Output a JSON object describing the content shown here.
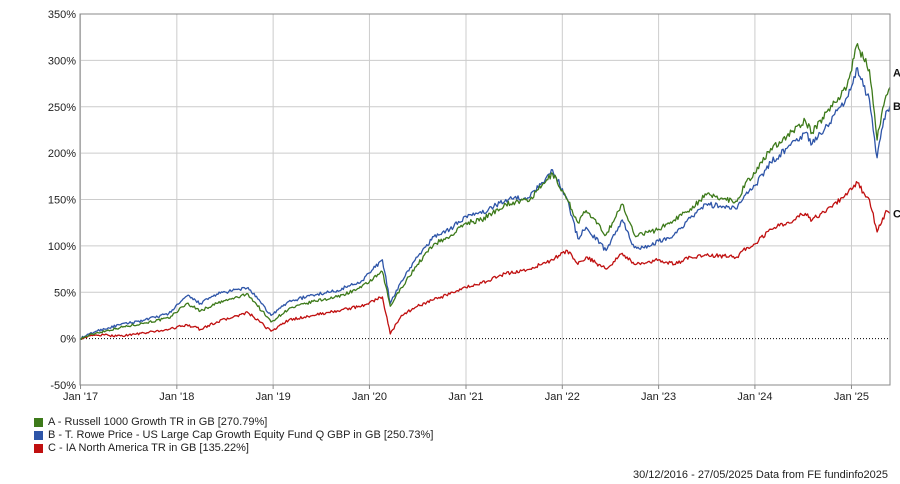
{
  "chart_data": {
    "type": "line",
    "ylim": [
      -50,
      350
    ],
    "y_ticks": [
      -50,
      0,
      50,
      100,
      150,
      200,
      250,
      300,
      350
    ],
    "y_tick_labels": [
      "-50%",
      "0%",
      "50%",
      "100%",
      "150%",
      "200%",
      "250%",
      "300%",
      "350%"
    ],
    "x_ticks": [
      "2017-01-01",
      "2018-01-01",
      "2019-01-01",
      "2020-01-01",
      "2021-01-01",
      "2022-01-01",
      "2023-01-01",
      "2024-01-01",
      "2025-01-01"
    ],
    "x_tick_labels": [
      "Jan '17",
      "Jan '18",
      "Jan '19",
      "Jan '20",
      "Jan '21",
      "Jan '22",
      "Jan '23",
      "Jan '24",
      "Jan '25"
    ],
    "xlim": [
      "2016-12-30",
      "2025-05-27"
    ],
    "grid": true,
    "zero_line": "dotted",
    "legend_placement": "bottom-left",
    "series": [
      {
        "id": "A",
        "name": "A - Russell 1000 Growth TR in GB [270.79%]",
        "color": "#3d7a1a",
        "x": [
          "2016-12-30",
          "2017-03-01",
          "2017-06-01",
          "2017-09-01",
          "2017-12-01",
          "2018-02-08",
          "2018-04-01",
          "2018-06-01",
          "2018-09-28",
          "2018-12-24",
          "2019-03-01",
          "2019-06-01",
          "2019-09-01",
          "2019-12-01",
          "2020-02-19",
          "2020-03-20",
          "2020-05-01",
          "2020-07-01",
          "2020-09-01",
          "2020-11-01",
          "2021-01-01",
          "2021-03-01",
          "2021-06-01",
          "2021-09-01",
          "2021-11-25",
          "2022-01-20",
          "2022-03-01",
          "2022-04-01",
          "2022-06-16",
          "2022-08-16",
          "2022-10-01",
          "2022-12-01",
          "2023-01-01",
          "2023-03-01",
          "2023-05-01",
          "2023-07-01",
          "2023-10-25",
          "2023-12-01",
          "2024-01-01",
          "2024-03-01",
          "2024-05-01",
          "2024-07-10",
          "2024-08-05",
          "2024-10-01",
          "2024-12-15",
          "2025-01-24",
          "2025-02-15",
          "2025-03-10",
          "2025-04-08",
          "2025-04-25",
          "2025-05-12",
          "2025-05-27"
        ],
        "values": [
          0,
          6,
          12,
          17,
          22,
          38,
          30,
          38,
          48,
          18,
          32,
          40,
          45,
          55,
          72,
          35,
          55,
          80,
          102,
          110,
          125,
          128,
          145,
          150,
          178,
          150,
          125,
          138,
          112,
          145,
          112,
          115,
          118,
          128,
          140,
          155,
          148,
          170,
          178,
          205,
          218,
          235,
          222,
          245,
          272,
          318,
          302,
          290,
          214,
          242,
          262,
          271
        ]
      },
      {
        "id": "B",
        "name": "B - T. Rowe Price - US Large Cap Growth Equity Fund Q GBP in GB [250.73%]",
        "color": "#2e55a8",
        "x": [
          "2016-12-30",
          "2017-03-01",
          "2017-06-01",
          "2017-09-01",
          "2017-12-01",
          "2018-02-08",
          "2018-04-01",
          "2018-06-01",
          "2018-09-28",
          "2018-12-24",
          "2019-03-01",
          "2019-06-01",
          "2019-09-01",
          "2019-12-01",
          "2020-02-19",
          "2020-03-20",
          "2020-05-01",
          "2020-07-01",
          "2020-09-01",
          "2020-11-01",
          "2021-01-01",
          "2021-03-01",
          "2021-06-01",
          "2021-09-01",
          "2021-11-25",
          "2022-01-20",
          "2022-03-01",
          "2022-04-01",
          "2022-06-16",
          "2022-08-16",
          "2022-10-01",
          "2022-12-01",
          "2023-01-01",
          "2023-03-01",
          "2023-05-01",
          "2023-07-01",
          "2023-10-25",
          "2023-12-01",
          "2024-01-01",
          "2024-03-01",
          "2024-05-01",
          "2024-07-10",
          "2024-08-05",
          "2024-10-01",
          "2024-12-15",
          "2025-01-24",
          "2025-02-15",
          "2025-03-10",
          "2025-04-08",
          "2025-04-25",
          "2025-05-12",
          "2025-05-27"
        ],
        "values": [
          0,
          8,
          15,
          20,
          27,
          46,
          38,
          48,
          55,
          25,
          40,
          47,
          52,
          62,
          85,
          38,
          62,
          88,
          110,
          118,
          132,
          135,
          150,
          153,
          182,
          150,
          108,
          120,
          95,
          128,
          98,
          100,
          105,
          112,
          130,
          145,
          140,
          158,
          165,
          190,
          205,
          222,
          210,
          230,
          260,
          292,
          272,
          258,
          195,
          225,
          245,
          251
        ]
      },
      {
        "id": "C",
        "name": "C - IA North America TR in GB [135.22%]",
        "color": "#c01010",
        "x": [
          "2016-12-30",
          "2017-03-01",
          "2017-06-01",
          "2017-09-01",
          "2017-12-01",
          "2018-02-08",
          "2018-04-01",
          "2018-06-01",
          "2018-09-28",
          "2018-12-24",
          "2019-03-01",
          "2019-06-01",
          "2019-09-01",
          "2019-12-01",
          "2020-02-19",
          "2020-03-20",
          "2020-05-01",
          "2020-07-01",
          "2020-09-01",
          "2020-11-01",
          "2021-01-01",
          "2021-03-01",
          "2021-06-01",
          "2021-09-01",
          "2021-11-25",
          "2022-01-20",
          "2022-03-01",
          "2022-04-01",
          "2022-06-16",
          "2022-08-16",
          "2022-10-01",
          "2022-12-01",
          "2023-01-01",
          "2023-03-01",
          "2023-05-01",
          "2023-07-01",
          "2023-10-25",
          "2023-12-01",
          "2024-01-01",
          "2024-03-01",
          "2024-05-01",
          "2024-07-10",
          "2024-08-05",
          "2024-10-01",
          "2024-12-15",
          "2025-01-24",
          "2025-02-15",
          "2025-03-10",
          "2025-04-08",
          "2025-04-25",
          "2025-05-12",
          "2025-05-27"
        ],
        "values": [
          0,
          4,
          3,
          6,
          10,
          15,
          10,
          18,
          28,
          8,
          20,
          25,
          30,
          35,
          45,
          5,
          25,
          35,
          42,
          48,
          55,
          60,
          70,
          75,
          85,
          95,
          80,
          88,
          75,
          92,
          80,
          82,
          85,
          80,
          88,
          90,
          88,
          98,
          102,
          118,
          125,
          135,
          128,
          140,
          155,
          168,
          158,
          150,
          115,
          125,
          138,
          135
        ]
      }
    ]
  },
  "legend": [
    {
      "text": "A - Russell 1000 Growth TR in GB [270.79%]",
      "color": "#3d7a1a"
    },
    {
      "text": "B - T. Rowe Price - US Large Cap Growth Equity Fund Q GBP in GB [250.73%]",
      "color": "#2e55a8"
    },
    {
      "text": "C - IA North America TR in GB [135.22%]",
      "color": "#c01010"
    }
  ],
  "footer": "30/12/2016 - 27/05/2025 Data from FE fundinfo2025"
}
